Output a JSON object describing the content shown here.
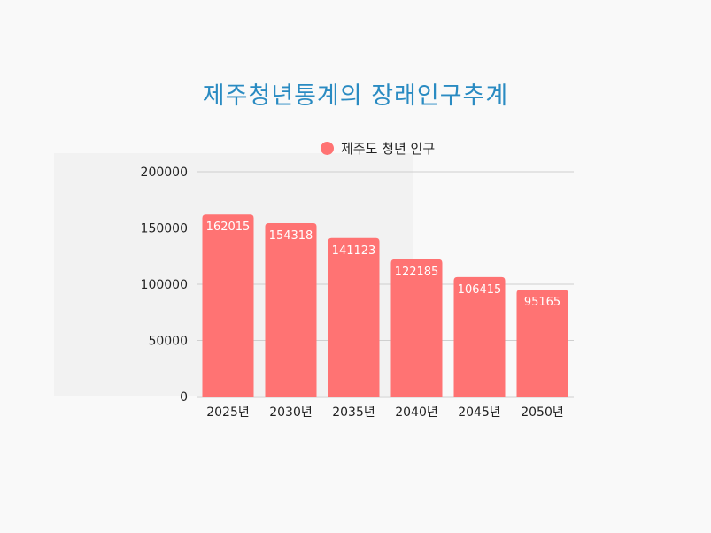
{
  "colors": {
    "bar": "#ff7373",
    "title": "#2a8bc2",
    "grid": "#cfcfcf"
  },
  "chart_data": {
    "type": "bar",
    "title": "제주청년통계의 장래인구추계",
    "xlabel": "",
    "ylabel": "",
    "categories": [
      "2025년",
      "2030년",
      "2035년",
      "2040년",
      "2045년",
      "2050년"
    ],
    "series": [
      {
        "name": "제주도 청년 인구",
        "values": [
          162015,
          154318,
          141123,
          122185,
          106415,
          95165
        ]
      }
    ],
    "ylim": [
      0,
      200000
    ],
    "yticks": [
      0,
      50000,
      100000,
      150000,
      200000
    ],
    "grid": true,
    "legend_position": "top"
  }
}
